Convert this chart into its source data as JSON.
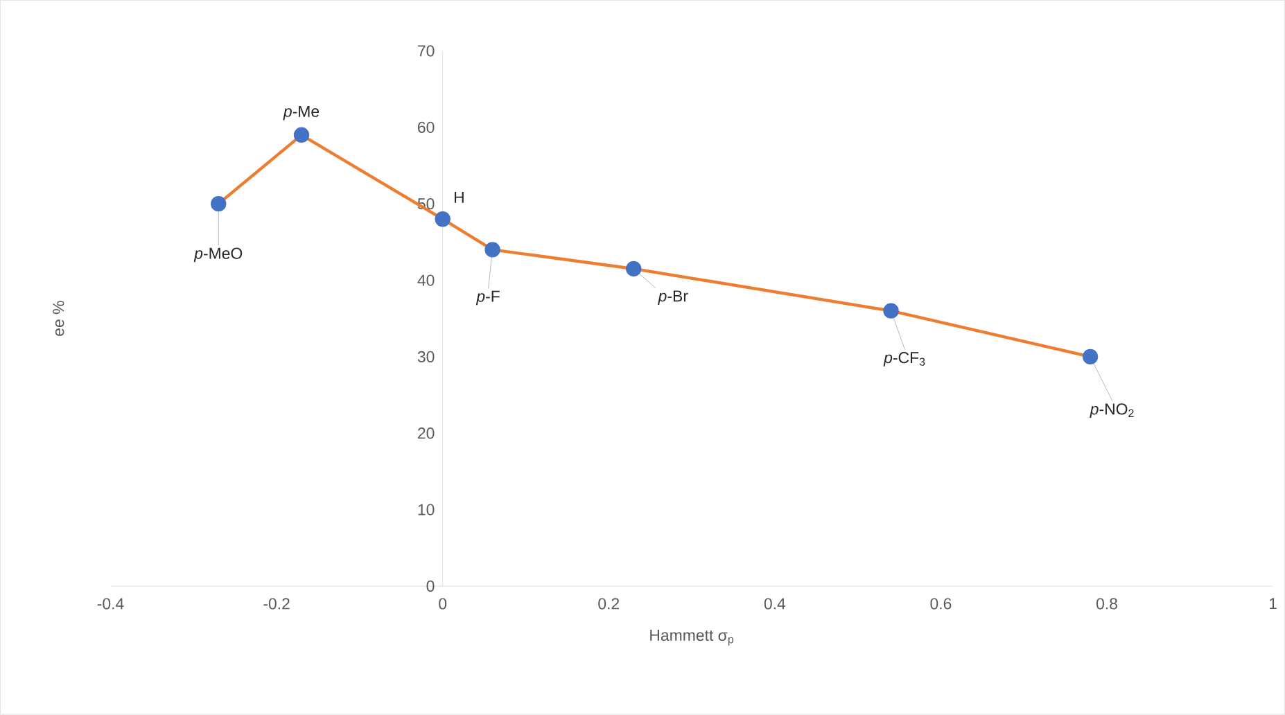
{
  "chart_data": {
    "type": "line",
    "xlabel": "Hammett σ$_{p}$",
    "ylabel": "ee %",
    "x": [
      -0.27,
      -0.17,
      0,
      0.06,
      0.23,
      0.54,
      0.78
    ],
    "series": [
      {
        "color": "#ed7d31",
        "values": [
          50,
          59,
          48,
          44,
          41.5,
          36,
          30
        ]
      }
    ],
    "xlim": [
      -0.4,
      1
    ],
    "xticks": [
      -0.4,
      -0.2,
      0,
      0.2,
      0.4,
      0.6,
      0.8,
      1
    ],
    "ylim": [
      0,
      70
    ],
    "yticks": [
      0,
      10,
      20,
      30,
      40,
      50,
      60,
      70
    ],
    "marker": "circle",
    "line_style": "solid",
    "annotations": [
      {
        "text": "*p*-MeO",
        "x": -0.27,
        "y": 50
      },
      {
        "text": "*p*-Me",
        "x": -0.17,
        "y": 59
      },
      {
        "text": "H",
        "x": 0,
        "y": 48
      },
      {
        "text": "*p*-F",
        "x": 0.06,
        "y": 44
      },
      {
        "text": "*p*-Br",
        "x": 0.23,
        "y": 41.5
      },
      {
        "text": "*p*-CF$_{3}$",
        "x": 0.54,
        "y": 36
      },
      {
        "text": "*p*-NO$_{2}$",
        "x": 0.78,
        "y": 30
      }
    ]
  }
}
